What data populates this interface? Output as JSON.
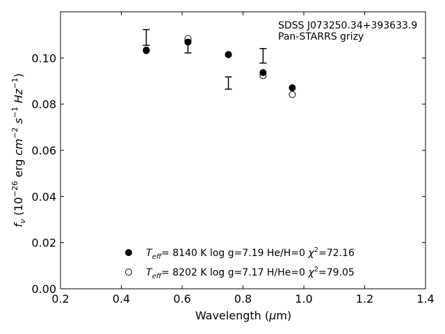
{
  "chart_data": {
    "type": "scatter",
    "annotation": [
      "SDSS J073250.34+393633.9",
      "Pan-STARRS grizy"
    ],
    "xlabel": "Wavelength (μm)",
    "ylabel": "fν (10⁻²⁶ erg cm⁻² s⁻¹ Hz⁻¹)",
    "xlim": [
      0.2,
      1.4
    ],
    "ylim": [
      0.0,
      0.12
    ],
    "xticks": [
      0.2,
      0.4,
      0.6,
      0.8,
      1.0,
      1.2,
      1.4
    ],
    "xtick_labels": [
      "0.2",
      "0.4",
      "0.6",
      "0.8",
      "1.0",
      "1.2",
      "1.4"
    ],
    "yticks": [
      0.0,
      0.02,
      0.04,
      0.06,
      0.08,
      0.1
    ],
    "ytick_labels": [
      "0.00",
      "0.02",
      "0.04",
      "0.06",
      "0.08",
      "0.10"
    ],
    "grid": false,
    "legend_position": "bottom-center",
    "observed": {
      "x": [
        0.482,
        0.619,
        0.752,
        0.866,
        0.962
      ],
      "y_low": [
        0.1055,
        0.1022,
        0.0865,
        0.0978,
        null
      ],
      "y_high": [
        0.1123,
        0.1075,
        0.0918,
        0.1041,
        null
      ]
    },
    "series": [
      {
        "name": "T_eff = 8140 K  log g=7.19  He/H=0  χ²=72.16",
        "marker": "filled-circle",
        "x": [
          0.482,
          0.619,
          0.752,
          0.866,
          0.962
        ],
        "y": [
          0.1032,
          0.1069,
          0.1015,
          0.0937,
          0.0871
        ]
      },
      {
        "name": "T_eff = 8202 K  log g=7.17  H/He=0  χ²=79.05",
        "marker": "open-circle",
        "x": [
          0.482,
          0.619,
          0.752,
          0.866,
          0.962
        ],
        "y": [
          0.1034,
          0.1084,
          0.1015,
          0.0924,
          0.0842
        ]
      }
    ],
    "legend": [
      {
        "teff": "8140 K",
        "rest": "log g=7.19  He/H=0",
        "chi2": "=72.16"
      },
      {
        "teff": "8202 K",
        "rest": "log g=7.17  H/He=0",
        "chi2": "=79.05"
      }
    ]
  }
}
